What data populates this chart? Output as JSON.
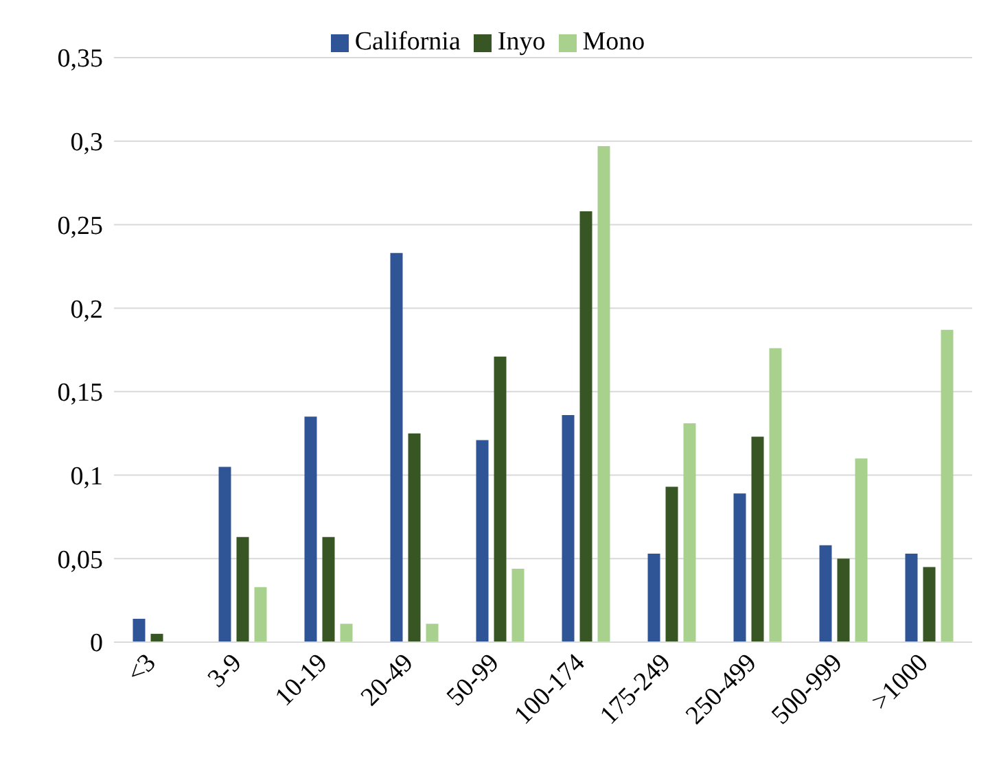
{
  "chart_data": {
    "type": "bar",
    "categories": [
      "<3",
      "3-9",
      "10-19",
      "20-49",
      "50-99",
      "100-174",
      "175-249",
      "250-499",
      "500-999",
      ">1000"
    ],
    "series": [
      {
        "name": "California",
        "color": "#2f5597",
        "values": [
          0.014,
          0.105,
          0.135,
          0.233,
          0.121,
          0.136,
          0.053,
          0.089,
          0.058,
          0.053
        ]
      },
      {
        "name": "Inyo",
        "color": "#375623",
        "values": [
          0.005,
          0.063,
          0.063,
          0.125,
          0.171,
          0.258,
          0.093,
          0.123,
          0.05,
          0.045
        ]
      },
      {
        "name": "Mono",
        "color": "#a9d18e",
        "values": [
          0,
          0.033,
          0.011,
          0.011,
          0.044,
          0.297,
          0.131,
          0.176,
          0.11,
          0.187
        ]
      }
    ],
    "ylim": [
      0,
      0.35
    ],
    "yticks": [
      {
        "value": 0,
        "label": "0"
      },
      {
        "value": 0.05,
        "label": "0,05"
      },
      {
        "value": 0.1,
        "label": "0,1"
      },
      {
        "value": 0.15,
        "label": "0,15"
      },
      {
        "value": 0.2,
        "label": "0,2"
      },
      {
        "value": 0.25,
        "label": "0,25"
      },
      {
        "value": 0.3,
        "label": "0,3"
      },
      {
        "value": 0.35,
        "label": "0,35"
      }
    ],
    "grid": "y",
    "legend": "top"
  }
}
